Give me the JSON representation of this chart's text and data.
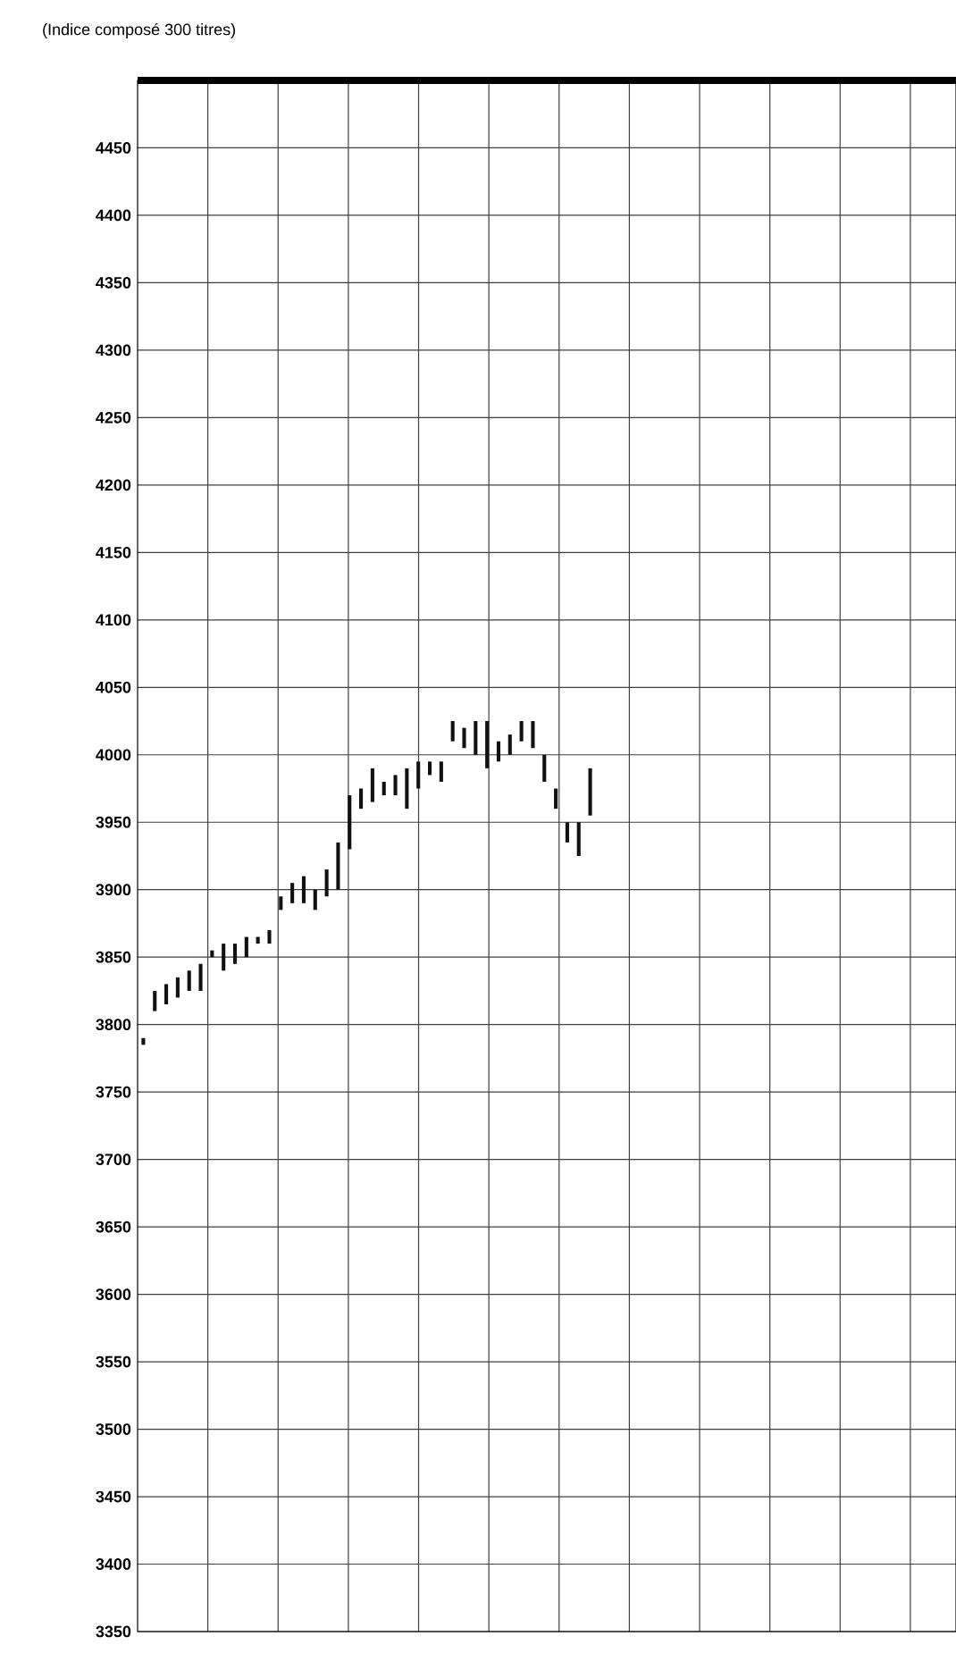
{
  "chart_data": {
    "type": "bar",
    "title": "(Indice composé 300 titres)",
    "categories": [
      null,
      null,
      null,
      null,
      null,
      null,
      null,
      null,
      null,
      null,
      null,
      null,
      null,
      null,
      null,
      null,
      null,
      null,
      null,
      null,
      null,
      null,
      null,
      null,
      null,
      null,
      null,
      null,
      null,
      null,
      null,
      null,
      null,
      null,
      null,
      null,
      null,
      null,
      null,
      null
    ],
    "base": [
      3785,
      3810,
      3815,
      3820,
      3825,
      3825,
      3850,
      3840,
      3845,
      3850,
      3860,
      3860,
      3885,
      3890,
      3890,
      3885,
      3895,
      3900,
      3930,
      3960,
      3965,
      3970,
      3970,
      3960,
      3975,
      3985,
      3980,
      4010,
      4005,
      4000,
      3990,
      3995,
      4000,
      4010,
      4005,
      3980,
      3960,
      3935,
      3925,
      3955
    ],
    "values": [
      5,
      15,
      15,
      15,
      15,
      20,
      5,
      20,
      15,
      15,
      5,
      10,
      10,
      15,
      20,
      15,
      20,
      35,
      40,
      15,
      25,
      10,
      15,
      30,
      20,
      10,
      15,
      15,
      15,
      25,
      35,
      15,
      15,
      15,
      20,
      20,
      15,
      15,
      25,
      35
    ],
    "color": "#111111",
    "ylim": [
      3350,
      4500
    ],
    "yticks": [
      3350,
      3400,
      3450,
      3500,
      3550,
      3600,
      3650,
      3700,
      3750,
      3800,
      3850,
      3900,
      3950,
      4000,
      4050,
      4100,
      4150,
      4200,
      4250,
      4300,
      4350,
      4400,
      4450
    ],
    "grid": true,
    "tick_labels": "y"
  }
}
